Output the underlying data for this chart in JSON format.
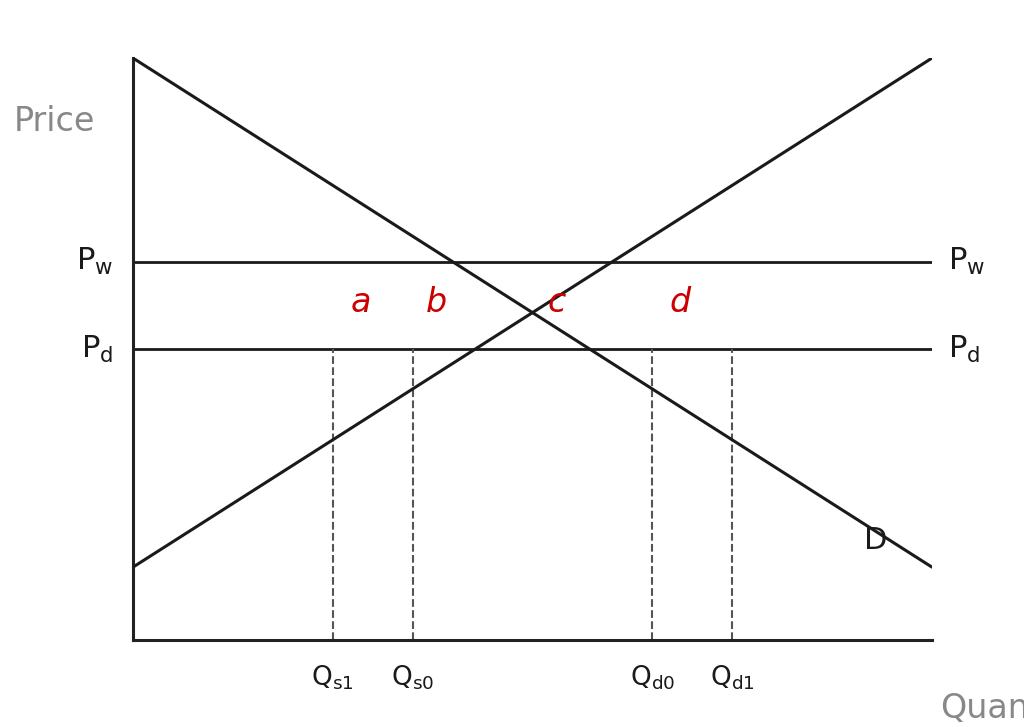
{
  "background_color": "#ffffff",
  "curve_color": "#1a1a1a",
  "line_color": "#1a1a1a",
  "dashed_color": "#555555",
  "label_color_red": "#cc0000",
  "label_color_gray": "#888888",
  "Pw": 6.5,
  "Pd": 5.0,
  "xlim": [
    0,
    10
  ],
  "ylim": [
    0,
    10
  ],
  "Qs1": 2.5,
  "Qs0": 3.5,
  "Qd0": 6.5,
  "Qd1": 7.5,
  "label_fontsize": 22,
  "tick_label_fontsize": 19,
  "region_label_fontsize": 24,
  "curve_lw": 2.2,
  "hline_lw": 2.0,
  "spine_lw": 2.2,
  "axis_label_fontsize": 24
}
